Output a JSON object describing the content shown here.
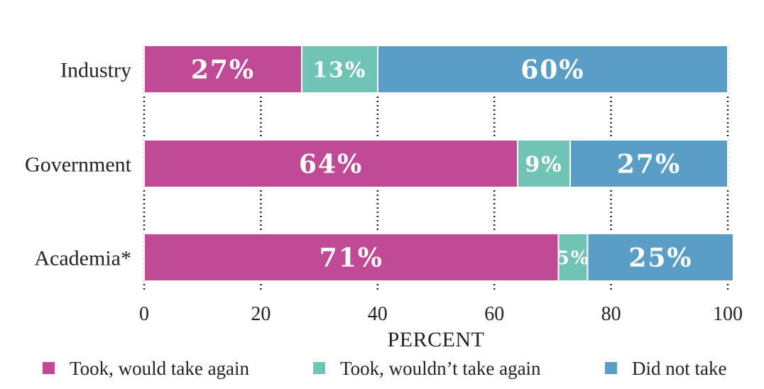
{
  "chart_data": {
    "type": "bar",
    "orientation": "horizontal",
    "stacked": true,
    "categories": [
      "Industry",
      "Government",
      "Academia*"
    ],
    "series": [
      {
        "name": "Took, would take again",
        "values": [
          27,
          64,
          71
        ],
        "labels": [
          "27%",
          "64%",
          "71%"
        ],
        "color": "#c04a96"
      },
      {
        "name": "Took, wouldn’t take again",
        "values": [
          13,
          9,
          5
        ],
        "labels": [
          "13%",
          "9%",
          "5%"
        ],
        "color": "#6fc4b6"
      },
      {
        "name": "Did not take",
        "values": [
          60,
          27,
          25
        ],
        "labels": [
          "60%",
          "27%",
          "25%"
        ],
        "color": "#5b9ec5"
      }
    ],
    "xlabel": "PERCENT",
    "xlim": [
      0,
      100
    ],
    "xticks": [
      0,
      20,
      40,
      60,
      80,
      100
    ],
    "grid": "vertical dotted",
    "legend": "bottom"
  }
}
